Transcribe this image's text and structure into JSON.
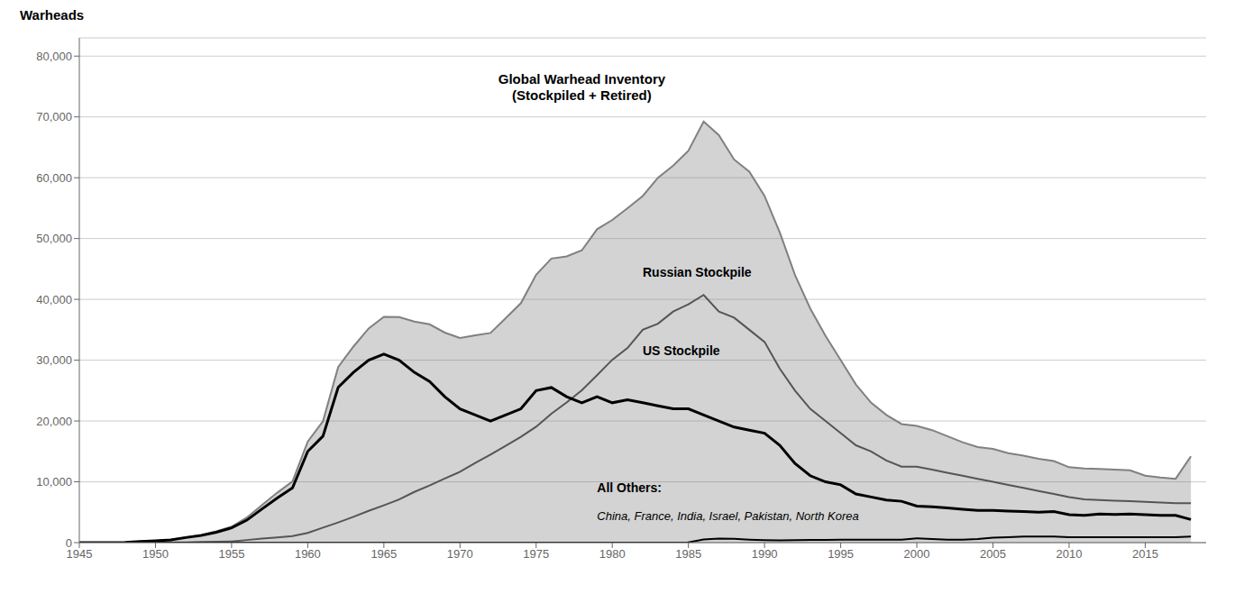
{
  "chart_data": {
    "type": "line",
    "ylabel": "Warheads",
    "grid": true,
    "xlim": [
      1945,
      2019
    ],
    "xticks": [
      1945,
      1950,
      1955,
      1960,
      1965,
      1970,
      1975,
      1980,
      1985,
      1990,
      1995,
      2000,
      2005,
      2010,
      2015
    ],
    "ylim": [
      0,
      83000
    ],
    "yticks": [
      0,
      {
        "value": 10000,
        "label": "10,000"
      },
      {
        "value": 20000,
        "label": "20,000"
      },
      {
        "value": 30000,
        "label": "30,000"
      },
      {
        "value": 40000,
        "label": "40,000"
      },
      {
        "value": 50000,
        "label": "50,000"
      },
      {
        "value": 60000,
        "label": "60,000"
      },
      {
        "value": 70000,
        "label": "70,000"
      },
      {
        "value": 80000,
        "label": "80,000"
      }
    ],
    "x": [
      1945,
      1946,
      1947,
      1948,
      1949,
      1950,
      1951,
      1952,
      1953,
      1954,
      1955,
      1956,
      1957,
      1958,
      1959,
      1960,
      1961,
      1962,
      1963,
      1964,
      1965,
      1966,
      1967,
      1968,
      1969,
      1970,
      1971,
      1972,
      1973,
      1974,
      1975,
      1976,
      1977,
      1978,
      1979,
      1980,
      1981,
      1982,
      1983,
      1984,
      1985,
      1986,
      1987,
      1988,
      1989,
      1990,
      1991,
      1992,
      1993,
      1994,
      1995,
      1996,
      1997,
      1998,
      1999,
      2000,
      2001,
      2002,
      2003,
      2004,
      2005,
      2006,
      2007,
      2008,
      2009,
      2010,
      2011,
      2012,
      2013,
      2014,
      2015,
      2016,
      2017,
      2018
    ],
    "series": [
      {
        "type": "area",
        "color": "#808080",
        "values": [
          2,
          9,
          13,
          50,
          171,
          304,
          463,
          882,
          1289,
          1853,
          2622,
          4118,
          6203,
          8214,
          10060,
          16605,
          19971,
          28862,
          32238,
          35221,
          37129,
          37089,
          36339,
          35899,
          34538,
          33643,
          34092,
          34478,
          36915,
          39385,
          44055,
          46705,
          47055,
          48055,
          51535,
          53063,
          55000,
          57000,
          60000,
          62000,
          64449,
          69248,
          67000,
          63000,
          61000,
          57000,
          51000,
          44000,
          38500,
          34000,
          30000,
          26000,
          23000,
          21000,
          19500,
          19200,
          18500,
          17500,
          16500,
          15700,
          15400,
          14700,
          14300,
          13800,
          13400,
          12400,
          12200,
          12100,
          12000,
          11900,
          11000,
          10700,
          10500,
          14200
        ]
      },
      {
        "type": "line",
        "color": "#555555",
        "values": [
          0,
          0,
          0,
          0,
          1,
          5,
          25,
          50,
          120,
          150,
          200,
          426,
          660,
          869,
          1060,
          1605,
          2471,
          3322,
          4238,
          5221,
          6129,
          7089,
          8339,
          9399,
          10538,
          11643,
          13092,
          14478,
          15915,
          17385,
          19055,
          21205,
          23055,
          25055,
          27535,
          30063,
          32000,
          35000,
          36000,
          38000,
          39197,
          40723,
          38000,
          37000,
          35000,
          33000,
          28595,
          25000,
          22000,
          20000,
          18000,
          16000,
          15000,
          13500,
          12500,
          12500,
          12000,
          11500,
          11000,
          10500,
          10000,
          9500,
          9000,
          8500,
          8000,
          7500,
          7100,
          7000,
          6900,
          6800,
          6700,
          6600,
          6500,
          6500
        ]
      },
      {
        "type": "line",
        "color": "#000000",
        "values": [
          2,
          9,
          13,
          50,
          170,
          299,
          438,
          832,
          1169,
          1703,
          2422,
          3692,
          5543,
          7345,
          9000,
          15000,
          17500,
          25540,
          28000,
          30000,
          31000,
          30000,
          28000,
          26500,
          24000,
          22000,
          21000,
          20000,
          21000,
          22000,
          25000,
          25500,
          24000,
          23000,
          24000,
          23000,
          23500,
          23000,
          22500,
          22000,
          22000,
          21000,
          20000,
          19000,
          18500,
          18000,
          16000,
          13000,
          11000,
          10000,
          9500,
          8000,
          7500,
          7000,
          6800,
          6000,
          5900,
          5700,
          5500,
          5300,
          5300,
          5200,
          5100,
          5000,
          5100,
          4600,
          4500,
          4700,
          4650,
          4700,
          4600,
          4500,
          4480,
          3800
        ]
      },
      {
        "type": "line",
        "color": "#000000",
        "values": [
          0,
          0,
          0,
          0,
          0,
          0,
          0,
          0,
          0,
          0,
          0,
          0,
          0,
          0,
          0,
          0,
          0,
          0,
          0,
          0,
          0,
          0,
          0,
          0,
          0,
          0,
          0,
          0,
          0,
          0,
          0,
          0,
          0,
          0,
          0,
          0,
          0,
          0,
          0,
          0,
          52,
          525,
          662,
          631,
          500,
          400,
          355,
          400,
          430,
          460,
          480,
          500,
          500,
          500,
          500,
          700,
          600,
          500,
          500,
          600,
          800,
          900,
          1000,
          1000,
          1000,
          900,
          900,
          900,
          900,
          900,
          900,
          900,
          900,
          1000
        ]
      }
    ],
    "annotations": [
      {
        "text": "Global Warhead Inventory\n(Stockpiled + Retired)",
        "x": 1978,
        "y": 75000
      },
      {
        "text": "Russian Stockpile",
        "x": 1982,
        "y": 44500
      },
      {
        "text": "US Stockpile",
        "x": 1982,
        "y": 31500
      },
      {
        "text": "All Others:",
        "x": 1979,
        "y": 7800
      },
      {
        "text": "China, France, India, Israel, Pakistan, North Korea",
        "x": 1979,
        "y": 5200
      }
    ]
  }
}
